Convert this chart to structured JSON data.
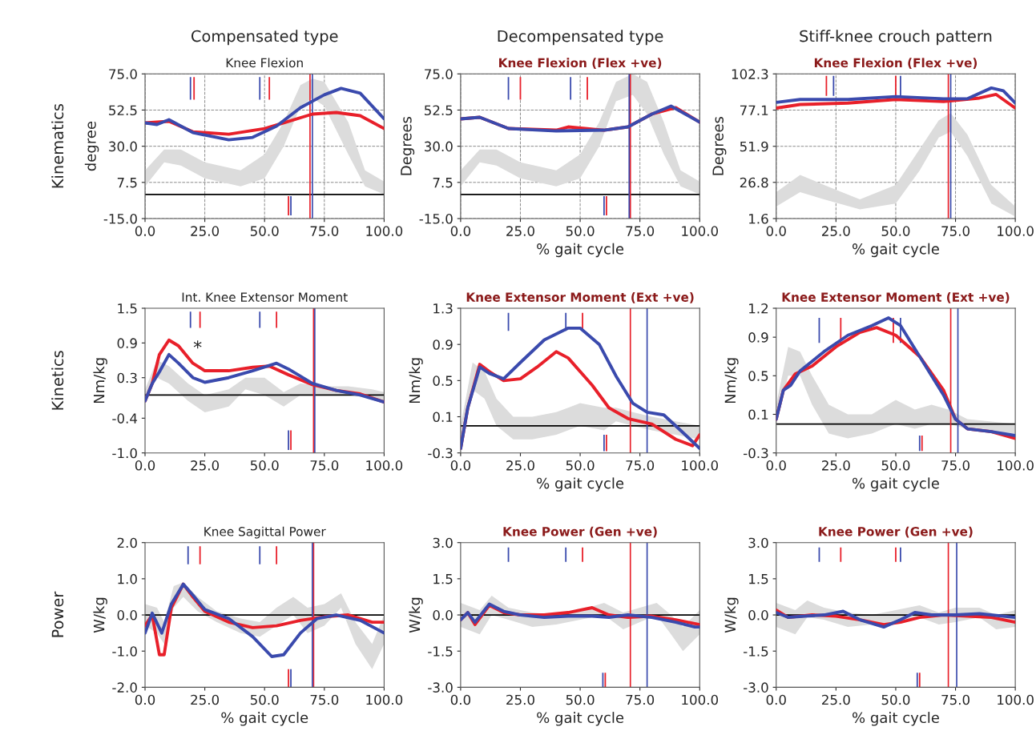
{
  "chart_data": [
    {
      "type": "line",
      "title": "Knee Flexion",
      "ylabel": "degree",
      "annotations": [
        "Compensated type",
        "Kinematics"
      ],
      "xlim": [
        0,
        100
      ],
      "xticks": [
        {
          "value": 0,
          "label": "0.0"
        },
        {
          "value": 25,
          "label": "25.0"
        },
        {
          "value": 50,
          "label": "50.0"
        },
        {
          "value": 75,
          "label": "75.0"
        },
        {
          "value": 100,
          "label": "100.0"
        }
      ],
      "ylim": [
        -15,
        75
      ],
      "yticks": [
        {
          "value": -15,
          "label": "-15.0"
        },
        7.5,
        {
          "value": 30,
          "label": "30.0"
        },
        52.5,
        {
          "value": 75,
          "label": "75.0"
        }
      ],
      "grid": true,
      "ref_lines": [
        {
          "axis": "y",
          "value": 0,
          "color": "#000000"
        },
        {
          "axis": "x",
          "value": 69,
          "color": "#e8202a"
        },
        {
          "axis": "x",
          "value": 70,
          "color": "#3a4aad"
        }
      ],
      "series": [
        {
          "color": "#dcdcdc",
          "x": [
            0,
            8,
            15,
            25,
            40,
            50,
            58,
            65,
            70,
            75,
            85,
            92,
            100
          ],
          "values": [
            null,
            null,
            null,
            null,
            null,
            null,
            null,
            null,
            null,
            null,
            null,
            null,
            null
          ],
          "lower": [
            5,
            20,
            18,
            10,
            5,
            10,
            30,
            55,
            60,
            55,
            25,
            5,
            0
          ],
          "upper": [
            15,
            28,
            28,
            20,
            15,
            25,
            45,
            68,
            72,
            70,
            45,
            15,
            8
          ]
        },
        {
          "type": "bar",
          "color": "#e8202a",
          "x": [
            20.5,
            52,
            60
          ],
          "base": [
            59,
            59,
            -13
          ],
          "values": [
            14,
            14,
            12
          ]
        },
        {
          "type": "bar",
          "color": "#3a4aad",
          "x": [
            19,
            48,
            61
          ],
          "base": [
            59,
            59,
            -13
          ],
          "values": [
            14,
            14,
            12
          ]
        },
        {
          "color": "#e8202a",
          "x": [
            0,
            10,
            20,
            35,
            50,
            60,
            70,
            80,
            90,
            100
          ],
          "values": [
            44.5,
            45.5,
            39,
            37.5,
            41,
            45.5,
            50,
            51,
            49,
            41
          ]
        },
        {
          "color": "#3a4aad",
          "x": [
            0,
            5,
            10,
            20,
            35,
            45,
            55,
            65,
            75,
            82,
            90,
            100
          ],
          "values": [
            44.5,
            43.5,
            46.5,
            38.5,
            34,
            35.5,
            42.5,
            54,
            62,
            66,
            63,
            47
          ]
        }
      ]
    },
    {
      "type": "line",
      "title": "Knee Flexion (Flex +ve)",
      "xlabel": "% gait cycle",
      "ylabel": "Degrees",
      "annotations": [
        "Decompensated type"
      ],
      "xlim": [
        0,
        100
      ],
      "xticks": [
        {
          "value": 0,
          "label": "0.0"
        },
        {
          "value": 25,
          "label": "25.0"
        },
        {
          "value": 50,
          "label": "50.0"
        },
        {
          "value": 75,
          "label": "75.0"
        },
        {
          "value": 100,
          "label": "100.0"
        }
      ],
      "ylim": [
        -15,
        75
      ],
      "yticks": [
        {
          "value": -15,
          "label": "-15.0"
        },
        7.5,
        {
          "value": 30,
          "label": "30.0"
        },
        52.5,
        {
          "value": 75,
          "label": "75.0"
        }
      ],
      "grid": true,
      "ref_lines": [
        {
          "axis": "y",
          "value": 0,
          "color": "#000000"
        },
        {
          "axis": "x",
          "value": 71,
          "color": "#e8202a"
        },
        {
          "axis": "x",
          "value": 70.5,
          "color": "#3a4aad"
        }
      ],
      "series": [
        {
          "color": "#dcdcdc",
          "x": [
            0,
            8,
            15,
            25,
            40,
            50,
            58,
            65,
            72,
            78,
            85,
            92,
            100
          ],
          "values": [
            null,
            null,
            null,
            null,
            null,
            null,
            null,
            null,
            null,
            null,
            null,
            null,
            null
          ],
          "lower": [
            5,
            20,
            18,
            10,
            5,
            10,
            30,
            58,
            62,
            50,
            25,
            5,
            0
          ],
          "upper": [
            15,
            28,
            28,
            20,
            15,
            25,
            45,
            70,
            75,
            70,
            45,
            15,
            8
          ]
        },
        {
          "type": "bar",
          "color": "#e8202a",
          "x": [
            25,
            53,
            61
          ],
          "base": [
            59,
            59,
            -13
          ],
          "values": [
            14,
            14,
            12
          ]
        },
        {
          "type": "bar",
          "color": "#3a4aad",
          "x": [
            20,
            46,
            60
          ],
          "base": [
            59,
            59,
            -13
          ],
          "values": [
            14,
            14,
            12
          ]
        },
        {
          "color": "#e8202a",
          "x": [
            0,
            8,
            20,
            40,
            45,
            60,
            70,
            80,
            90,
            100
          ],
          "values": [
            47,
            48,
            41,
            40,
            42,
            40,
            42,
            50,
            54,
            45
          ]
        },
        {
          "color": "#3a4aad",
          "x": [
            0,
            8,
            20,
            40,
            60,
            70,
            80,
            88,
            100
          ],
          "values": [
            47,
            48,
            41,
            39.5,
            40,
            42,
            50,
            55,
            45
          ]
        }
      ]
    },
    {
      "type": "line",
      "title": "Knee Flexion (Flex +ve)",
      "xlabel": "% gait cycle",
      "ylabel": "Degrees",
      "annotations": [
        "Stiff-knee crouch pattern"
      ],
      "xlim": [
        0,
        100
      ],
      "xticks": [
        {
          "value": 0,
          "label": "0.0"
        },
        {
          "value": 25,
          "label": "25.0"
        },
        {
          "value": 50,
          "label": "50.0"
        },
        {
          "value": 75,
          "label": "75.0"
        },
        {
          "value": 100,
          "label": "100.0"
        }
      ],
      "ylim": [
        1.6,
        102.3
      ],
      "yticks": [
        1.6,
        26.8,
        51.9,
        77.1,
        102.3
      ],
      "grid": true,
      "ref_lines": [
        {
          "axis": "x",
          "value": 72,
          "color": "#e8202a"
        },
        {
          "axis": "x",
          "value": 73,
          "color": "#3a4aad"
        }
      ],
      "series": [
        {
          "color": "#dcdcdc",
          "x": [
            0,
            10,
            20,
            35,
            50,
            60,
            68,
            73,
            80,
            90,
            100
          ],
          "values": [
            null,
            null,
            null,
            null,
            null,
            null,
            null,
            null,
            null,
            null,
            null
          ],
          "lower": [
            10,
            20,
            15,
            8,
            12,
            35,
            58,
            62,
            45,
            12,
            3
          ],
          "upper": [
            20,
            32,
            25,
            15,
            25,
            50,
            70,
            75,
            60,
            25,
            10
          ]
        },
        {
          "type": "bar",
          "color": "#e8202a",
          "x": [
            21,
            50
          ],
          "base": [
            87,
            87
          ],
          "values": [
            14,
            14
          ]
        },
        {
          "type": "bar",
          "color": "#3a4aad",
          "x": [
            24,
            52
          ],
          "base": [
            87,
            87
          ],
          "values": [
            14,
            14
          ]
        },
        {
          "color": "#e8202a",
          "x": [
            0,
            10,
            30,
            50,
            70,
            85,
            92,
            100
          ],
          "values": [
            78.5,
            81,
            82,
            84.5,
            83,
            85.5,
            88,
            78.5
          ]
        },
        {
          "color": "#3a4aad",
          "x": [
            0,
            10,
            30,
            50,
            70,
            80,
            90,
            95,
            100
          ],
          "values": [
            82.5,
            84.5,
            84.5,
            86.5,
            85,
            85,
            92.5,
            90.5,
            82
          ]
        }
      ]
    },
    {
      "type": "line",
      "title": "Int. Knee Extensor Moment",
      "ylabel": "Nm/kg",
      "annotations": [
        "Kinetics",
        "*"
      ],
      "xlim": [
        0,
        100
      ],
      "xticks": [
        {
          "value": 0,
          "label": "0.0"
        },
        {
          "value": 25,
          "label": "25.0"
        },
        {
          "value": 50,
          "label": "50.0"
        },
        {
          "value": 75,
          "label": "75.0"
        },
        {
          "value": 100,
          "label": "100.0"
        }
      ],
      "ylim": [
        -1.0,
        1.5
      ],
      "yticks": [
        {
          "value": -1,
          "label": "-1.0"
        },
        -0.4,
        0.3,
        0.9,
        1.5
      ],
      "ref_lines": [
        {
          "axis": "y",
          "value": 0,
          "color": "#000000"
        },
        {
          "axis": "x",
          "value": 70.5,
          "color": "#e8202a"
        },
        {
          "axis": "x",
          "value": 71,
          "color": "#3a4aad"
        }
      ],
      "series": [
        {
          "color": "#dcdcdc",
          "x": [
            0,
            5,
            10,
            18,
            25,
            35,
            42,
            50,
            58,
            65,
            75,
            85,
            95,
            100
          ],
          "values": [
            null,
            null,
            null,
            null,
            null,
            null,
            null,
            null,
            null,
            null,
            null,
            null,
            null,
            null
          ],
          "lower": [
            -0.1,
            0.3,
            0.2,
            -0.1,
            -0.3,
            -0.2,
            0.1,
            0.0,
            -0.2,
            0.0,
            0.0,
            0.0,
            -0.05,
            -0.1
          ],
          "upper": [
            0.1,
            0.6,
            0.5,
            0.2,
            0.0,
            0.1,
            0.3,
            0.3,
            0.05,
            0.2,
            0.15,
            0.15,
            0.1,
            0.05
          ]
        },
        {
          "type": "bar",
          "color": "#e8202a",
          "x": [
            23,
            55,
            61
          ],
          "base": [
            1.16,
            1.16,
            -0.95
          ],
          "values": [
            0.28,
            0.28,
            0.34
          ]
        },
        {
          "type": "bar",
          "color": "#3a4aad",
          "x": [
            19,
            48,
            60
          ],
          "base": [
            1.16,
            1.16,
            -0.95
          ],
          "values": [
            0.28,
            0.28,
            0.34
          ]
        },
        {
          "color": "#e8202a",
          "x": [
            0,
            3,
            6,
            10,
            14,
            20,
            25,
            35,
            45,
            52,
            60,
            70,
            80,
            90,
            100
          ],
          "values": [
            -0.1,
            0.2,
            0.7,
            0.95,
            0.85,
            0.55,
            0.42,
            0.42,
            0.48,
            0.5,
            0.35,
            0.18,
            0.08,
            0.02,
            -0.12
          ]
        },
        {
          "color": "#3a4aad",
          "x": [
            0,
            3,
            6,
            10,
            14,
            20,
            25,
            35,
            45,
            55,
            60,
            70,
            80,
            90,
            100
          ],
          "values": [
            -0.1,
            0.2,
            0.4,
            0.7,
            0.55,
            0.3,
            0.22,
            0.3,
            0.42,
            0.55,
            0.45,
            0.2,
            0.08,
            0.0,
            -0.12
          ]
        }
      ]
    },
    {
      "type": "line",
      "title": "Knee Extensor Moment (Ext +ve)",
      "xlabel": "% gait cycle",
      "ylabel": "Nm/kg",
      "xlim": [
        0,
        100
      ],
      "xticks": [
        {
          "value": 0,
          "label": "0.0"
        },
        {
          "value": 25,
          "label": "25.0"
        },
        {
          "value": 50,
          "label": "50.0"
        },
        {
          "value": 75,
          "label": "75.0"
        },
        {
          "value": 100,
          "label": "100.0"
        }
      ],
      "ylim": [
        -0.3,
        1.3
      ],
      "yticks": [
        -0.3,
        0.1,
        0.5,
        0.9,
        1.3
      ],
      "ref_lines": [
        {
          "axis": "y",
          "value": 0,
          "color": "#000000"
        },
        {
          "axis": "x",
          "value": 71,
          "color": "#e8202a"
        },
        {
          "axis": "x",
          "value": 78,
          "color": "#3a4aad"
        }
      ],
      "series": [
        {
          "color": "#dcdcdc",
          "x": [
            0,
            5,
            10,
            15,
            22,
            30,
            40,
            50,
            60,
            65,
            72,
            80,
            90,
            100
          ],
          "values": [
            null,
            null,
            null,
            null,
            null,
            null,
            null,
            null,
            null,
            null,
            null,
            null,
            null,
            null
          ],
          "lower": [
            -0.2,
            0.4,
            0.3,
            0.0,
            -0.15,
            -0.15,
            -0.1,
            0.0,
            -0.05,
            0.05,
            0.0,
            -0.05,
            -0.1,
            -0.15
          ],
          "upper": [
            0.0,
            0.7,
            0.6,
            0.3,
            0.1,
            0.1,
            0.15,
            0.25,
            0.2,
            0.2,
            0.15,
            0.1,
            0.05,
            0.0
          ]
        },
        {
          "type": "bar",
          "color": "#e8202a",
          "x": [
            51,
            61
          ],
          "base": [
            1.05,
            -0.28
          ],
          "values": [
            0.2,
            0.18
          ]
        },
        {
          "type": "bar",
          "color": "#3a4aad",
          "x": [
            20,
            44,
            60
          ],
          "base": [
            1.05,
            1.05,
            -0.28
          ],
          "values": [
            0.2,
            0.2,
            0.18
          ]
        },
        {
          "color": "#e8202a",
          "x": [
            0,
            3,
            8,
            12,
            18,
            25,
            32,
            40,
            45,
            55,
            62,
            70,
            80,
            90,
            97,
            100
          ],
          "values": [
            -0.25,
            0.2,
            0.68,
            0.6,
            0.5,
            0.52,
            0.65,
            0.82,
            0.75,
            0.45,
            0.2,
            0.08,
            0.02,
            -0.15,
            -0.22,
            -0.1
          ]
        },
        {
          "color": "#3a4aad",
          "x": [
            0,
            3,
            8,
            12,
            18,
            25,
            35,
            45,
            50,
            58,
            65,
            72,
            78,
            85,
            92,
            100
          ],
          "values": [
            -0.25,
            0.2,
            0.65,
            0.58,
            0.52,
            0.7,
            0.95,
            1.08,
            1.08,
            0.9,
            0.55,
            0.25,
            0.15,
            0.12,
            -0.05,
            -0.25
          ]
        }
      ]
    },
    {
      "type": "line",
      "title": "Knee Extensor Moment (Ext +ve)",
      "xlabel": "% gait cycle",
      "ylabel": "Nm/kg",
      "xlim": [
        0,
        100
      ],
      "xticks": [
        {
          "value": 0,
          "label": "0.0"
        },
        {
          "value": 25,
          "label": "25.0"
        },
        {
          "value": 50,
          "label": "50.0"
        },
        {
          "value": 75,
          "label": "75.0"
        },
        {
          "value": 100,
          "label": "100.0"
        }
      ],
      "ylim": [
        -0.3,
        1.2
      ],
      "yticks": [
        -0.3,
        0.1,
        0.5,
        0.9,
        1.2
      ],
      "ref_lines": [
        {
          "axis": "y",
          "value": 0,
          "color": "#000000"
        },
        {
          "axis": "x",
          "value": 73,
          "color": "#e8202a"
        },
        {
          "axis": "x",
          "value": 76,
          "color": "#3a4aad"
        }
      ],
      "series": [
        {
          "color": "#dcdcdc",
          "x": [
            0,
            5,
            10,
            15,
            22,
            30,
            40,
            50,
            58,
            65,
            72,
            80,
            100
          ],
          "values": [
            null,
            null,
            null,
            null,
            null,
            null,
            null,
            null,
            null,
            null,
            null,
            null,
            null
          ],
          "lower": [
            0.0,
            0.5,
            0.5,
            0.2,
            -0.1,
            -0.15,
            -0.1,
            0.0,
            -0.05,
            0.0,
            0.0,
            -0.05,
            -0.1
          ],
          "upper": [
            0.2,
            0.8,
            0.75,
            0.5,
            0.2,
            0.1,
            0.1,
            0.25,
            0.15,
            0.2,
            0.15,
            0.05,
            0.0
          ]
        },
        {
          "type": "bar",
          "color": "#e8202a",
          "x": [
            27,
            49,
            61
          ],
          "base": [
            0.84,
            0.84,
            -0.28
          ],
          "values": [
            0.26,
            0.26,
            0.16
          ]
        },
        {
          "type": "bar",
          "color": "#3a4aad",
          "x": [
            18,
            52,
            60
          ],
          "base": [
            0.84,
            0.84,
            -0.28
          ],
          "values": [
            0.26,
            0.26,
            0.16
          ]
        },
        {
          "color": "#e8202a",
          "x": [
            0,
            3,
            8,
            15,
            25,
            35,
            42,
            50,
            60,
            70,
            75,
            80,
            90,
            100
          ],
          "values": [
            0.05,
            0.35,
            0.52,
            0.6,
            0.8,
            0.95,
            1.0,
            0.92,
            0.7,
            0.35,
            0.05,
            -0.05,
            -0.08,
            -0.15
          ]
        },
        {
          "color": "#3a4aad",
          "x": [
            0,
            3,
            6,
            10,
            20,
            30,
            40,
            47,
            52,
            60,
            70,
            75,
            80,
            90,
            100
          ],
          "values": [
            0.05,
            0.35,
            0.4,
            0.55,
            0.75,
            0.92,
            1.02,
            1.1,
            1.02,
            0.7,
            0.3,
            0.05,
            -0.05,
            -0.08,
            -0.12
          ]
        }
      ]
    },
    {
      "type": "line",
      "title": "Knee Sagittal Power",
      "xlabel": "% gait cycle",
      "ylabel": "W/kg",
      "annotations": [
        "Power"
      ],
      "xlim": [
        0,
        100
      ],
      "xticks": [
        {
          "value": 0,
          "label": "0.0"
        },
        {
          "value": 25,
          "label": "25.0"
        },
        {
          "value": 50,
          "label": "50.0"
        },
        {
          "value": 75,
          "label": "75.0"
        },
        {
          "value": 100,
          "label": "100.0"
        }
      ],
      "ylim": [
        -2.0,
        2.0
      ],
      "yticks": [
        {
          "value": -2,
          "label": "-2.0"
        },
        {
          "value": -1,
          "label": "-1.0"
        },
        {
          "value": 0,
          "label": "0.0"
        },
        {
          "value": 1,
          "label": "1.0"
        },
        {
          "value": 2,
          "label": "2.0"
        }
      ],
      "ref_lines": [
        {
          "axis": "y",
          "value": 0,
          "color": "#000000"
        },
        {
          "axis": "x",
          "value": 70.5,
          "color": "#e8202a"
        },
        {
          "axis": "x",
          "value": 70,
          "color": "#3a4aad"
        }
      ],
      "series": [
        {
          "color": "#dcdcdc",
          "x": [
            0,
            5,
            8,
            12,
            16,
            22,
            30,
            40,
            48,
            55,
            62,
            68,
            75,
            82,
            88,
            95,
            100
          ],
          "values": [
            null,
            null,
            null,
            null,
            null,
            null,
            null,
            null,
            null,
            null,
            null,
            null,
            null,
            null,
            null,
            null,
            null
          ],
          "lower": [
            -0.3,
            -0.5,
            -0.8,
            0.2,
            0.5,
            0.1,
            -0.2,
            -0.5,
            -0.6,
            -0.3,
            0.0,
            -0.5,
            -0.3,
            0.2,
            -0.8,
            -1.5,
            -0.8
          ],
          "upper": [
            0.3,
            0.2,
            -0.2,
            0.8,
            0.9,
            0.5,
            0.1,
            -0.1,
            -0.2,
            0.2,
            0.5,
            0.2,
            0.3,
            0.6,
            -0.2,
            -0.8,
            0.0
          ]
        },
        {
          "type": "bar",
          "color": "#e8202a",
          "x": [
            23,
            55,
            60
          ],
          "base": [
            1.4,
            1.4,
            -2.0
          ],
          "values": [
            0.5,
            0.5,
            0.5
          ]
        },
        {
          "type": "bar",
          "color": "#3a4aad",
          "x": [
            18,
            48,
            61
          ],
          "base": [
            1.4,
            1.4,
            -2.0
          ],
          "values": [
            0.5,
            0.5,
            0.5
          ]
        },
        {
          "color": "#e8202a",
          "x": [
            0,
            3,
            6,
            8,
            11,
            16,
            20,
            25,
            35,
            45,
            55,
            65,
            75,
            85,
            95,
            100
          ],
          "values": [
            -0.3,
            0.0,
            -1.1,
            -1.1,
            0.2,
            0.85,
            0.5,
            0.1,
            -0.2,
            -0.35,
            -0.3,
            -0.15,
            -0.05,
            0.0,
            -0.2,
            -0.2
          ]
        },
        {
          "color": "#3a4aad",
          "x": [
            0,
            3,
            7,
            11,
            16,
            20,
            25,
            35,
            45,
            53,
            58,
            65,
            72,
            80,
            90,
            100
          ],
          "values": [
            -0.5,
            0.05,
            -0.5,
            0.3,
            0.85,
            0.55,
            0.15,
            -0.1,
            -0.6,
            -1.15,
            -1.1,
            -0.5,
            -0.1,
            0.0,
            -0.15,
            -0.5
          ]
        }
      ]
    },
    {
      "type": "line",
      "title": "Knee Power (Gen +ve)",
      "xlabel": "% gait cycle",
      "ylabel": "W/kg",
      "xlim": [
        0,
        100
      ],
      "xticks": [
        {
          "value": 0,
          "label": "0.0"
        },
        {
          "value": 25,
          "label": "25.0"
        },
        {
          "value": 50,
          "label": "50.0"
        },
        {
          "value": 75,
          "label": "75.0"
        },
        {
          "value": 100,
          "label": "100.0"
        }
      ],
      "ylim": [
        -3.0,
        3.0
      ],
      "yticks": [
        {
          "value": -3,
          "label": "-3.0"
        },
        -1.5,
        {
          "value": 0,
          "label": "0.0"
        },
        1.5,
        {
          "value": 3,
          "label": "3.0"
        }
      ],
      "ref_lines": [
        {
          "axis": "y",
          "value": 0,
          "color": "#000000"
        },
        {
          "axis": "x",
          "value": 71,
          "color": "#e8202a"
        },
        {
          "axis": "x",
          "value": 78,
          "color": "#3a4aad"
        }
      ],
      "series": [
        {
          "color": "#dcdcdc",
          "x": [
            0,
            8,
            13,
            20,
            30,
            40,
            50,
            60,
            68,
            75,
            82,
            88,
            93,
            100
          ],
          "values": [
            null,
            null,
            null,
            null,
            null,
            null,
            null,
            null,
            null,
            null,
            null,
            null,
            null,
            null
          ],
          "lower": [
            -0.5,
            -0.8,
            0.0,
            -0.2,
            -0.5,
            -0.4,
            -0.2,
            0.0,
            -0.6,
            -0.3,
            0.0,
            -0.8,
            -1.5,
            -0.8
          ],
          "upper": [
            0.5,
            0.2,
            0.8,
            0.3,
            0.1,
            0.0,
            0.2,
            0.5,
            0.1,
            0.3,
            0.5,
            0.0,
            -0.5,
            0.2
          ]
        },
        {
          "type": "bar",
          "color": "#e8202a",
          "x": [
            51,
            60.5
          ],
          "base": [
            2.2,
            -3.0
          ],
          "values": [
            0.6,
            0.6
          ]
        },
        {
          "type": "bar",
          "color": "#3a4aad",
          "x": [
            20,
            44,
            59.5
          ],
          "base": [
            2.2,
            2.2,
            -3.0
          ],
          "values": [
            0.6,
            0.6,
            0.6
          ]
        },
        {
          "color": "#e8202a",
          "x": [
            0,
            3,
            6,
            12,
            18,
            25,
            35,
            45,
            55,
            62,
            70,
            80,
            90,
            100
          ],
          "values": [
            -0.2,
            0.1,
            -0.4,
            0.4,
            0.1,
            0.0,
            0.0,
            0.1,
            0.3,
            0.0,
            -0.1,
            -0.05,
            -0.2,
            -0.4
          ]
        },
        {
          "color": "#3a4aad",
          "x": [
            0,
            3,
            6,
            12,
            18,
            25,
            35,
            45,
            55,
            62,
            70,
            80,
            90,
            98,
            100
          ],
          "values": [
            -0.2,
            0.1,
            -0.3,
            0.45,
            0.15,
            0.0,
            -0.1,
            -0.05,
            -0.05,
            -0.1,
            0.0,
            -0.1,
            -0.3,
            -0.5,
            -0.5
          ]
        }
      ]
    },
    {
      "type": "line",
      "title": "Knee Power (Gen +ve)",
      "xlabel": "% gait cycle",
      "ylabel": "W/kg",
      "xlim": [
        0,
        100
      ],
      "xticks": [
        {
          "value": 0,
          "label": "0.0"
        },
        {
          "value": 25,
          "label": "25.0"
        },
        {
          "value": 50,
          "label": "50.0"
        },
        {
          "value": 75,
          "label": "75.0"
        },
        {
          "value": 100,
          "label": "100.0"
        }
      ],
      "ylim": [
        -3.0,
        3.0
      ],
      "yticks": [
        {
          "value": -3,
          "label": "-3.0"
        },
        -1.5,
        {
          "value": 0,
          "label": "0.0"
        },
        1.5,
        {
          "value": 3,
          "label": "3.0"
        }
      ],
      "ref_lines": [
        {
          "axis": "y",
          "value": 0,
          "color": "#000000"
        },
        {
          "axis": "x",
          "value": 72,
          "color": "#e8202a"
        },
        {
          "axis": "x",
          "value": 75.5,
          "color": "#3a4aad"
        }
      ],
      "series": [
        {
          "color": "#dcdcdc",
          "x": [
            0,
            8,
            13,
            20,
            30,
            40,
            50,
            60,
            68,
            75,
            85,
            92,
            100
          ],
          "values": [
            null,
            null,
            null,
            null,
            null,
            null,
            null,
            null,
            null,
            null,
            null,
            null,
            null
          ],
          "lower": [
            -0.5,
            -0.8,
            -0.1,
            -0.2,
            -0.5,
            -0.4,
            -0.3,
            -0.1,
            -0.4,
            -0.3,
            -0.1,
            -0.6,
            -0.5
          ],
          "upper": [
            0.5,
            0.2,
            0.6,
            0.3,
            0.1,
            0.0,
            0.2,
            0.4,
            0.1,
            0.3,
            0.3,
            0.0,
            0.2
          ]
        },
        {
          "type": "bar",
          "color": "#e8202a",
          "x": [
            27,
            50,
            60
          ],
          "base": [
            2.2,
            2.2,
            -3.0
          ],
          "values": [
            0.6,
            0.6,
            0.6
          ]
        },
        {
          "type": "bar",
          "color": "#3a4aad",
          "x": [
            18,
            52,
            59
          ],
          "base": [
            2.2,
            2.2,
            -3.0
          ],
          "values": [
            0.6,
            0.6,
            0.6
          ]
        },
        {
          "color": "#e8202a",
          "x": [
            0,
            5,
            15,
            25,
            35,
            45,
            52,
            60,
            70,
            80,
            90,
            100
          ],
          "values": [
            0.2,
            -0.1,
            0.0,
            -0.05,
            -0.2,
            -0.4,
            -0.3,
            -0.1,
            0.0,
            -0.05,
            -0.1,
            -0.3
          ]
        },
        {
          "color": "#3a4aad",
          "x": [
            0,
            5,
            12,
            20,
            28,
            35,
            45,
            52,
            58,
            65,
            75,
            85,
            100
          ],
          "values": [
            0.1,
            -0.1,
            -0.05,
            0.0,
            0.15,
            -0.2,
            -0.5,
            -0.2,
            0.1,
            0.0,
            0.0,
            0.05,
            -0.1
          ]
        }
      ]
    }
  ]
}
